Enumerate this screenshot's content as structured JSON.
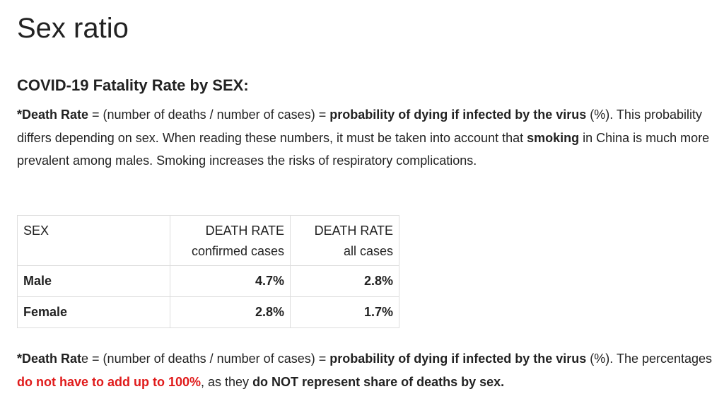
{
  "page_title": "Sex ratio",
  "section_title": "COVID-19 Fatality Rate by SEX:",
  "intro": {
    "dr_label": "*Death Rate",
    "dr_formula": " = (number of deaths / number of cases) = ",
    "dr_prob": "probability of dying if infected by the virus",
    "dr_pct": " (%). This probability differs depending on sex. When reading these numbers, it must be taken into account that ",
    "smoking": "smoking",
    "rest": " in China is much more prevalent among males. Smoking increases the risks of respiratory complications."
  },
  "table": {
    "headers": {
      "sex": "SEX",
      "confirmed_line1": "DEATH RATE",
      "confirmed_line2": "confirmed cases",
      "all_line1": "DEATH RATE",
      "all_line2": "all cases"
    },
    "rows": [
      {
        "sex": "Male",
        "confirmed": "4.7%",
        "all": "2.8%"
      },
      {
        "sex": "Female",
        "confirmed": "2.8%",
        "all": "1.7%"
      }
    ]
  },
  "footnote": {
    "dr_label_a": "*Death Rat",
    "dr_label_b": "e",
    "dr_formula": " = (number of deaths / number of cases) = ",
    "dr_prob": "probability of dying if infected by the virus",
    "dr_pct": " (%). The percentages ",
    "red_text": "do not have to add up to 100%",
    "middle": ", as they ",
    "bold_end": "do NOT represent share of deaths by sex."
  },
  "colors": {
    "text": "#222222",
    "emphasis_red": "#e01b1b",
    "table_border": "#dddddd"
  }
}
